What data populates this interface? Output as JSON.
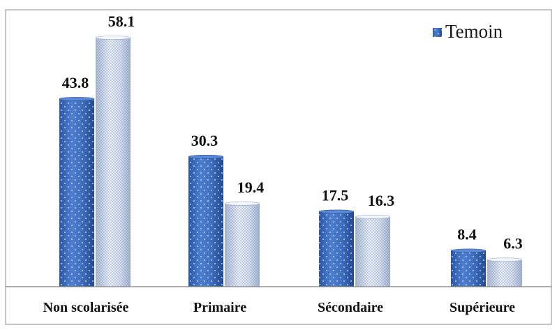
{
  "chart_data": {
    "type": "bar",
    "categories": [
      "Non scolarisée",
      "Primaire",
      "Sécondaire",
      "Supérieure"
    ],
    "series": [
      {
        "name": "Temoin",
        "values": [
          43.8,
          30.3,
          17.5,
          8.4
        ],
        "color": "#3f6fbd",
        "pattern": "dots-on-blue"
      },
      {
        "values": [
          58.1,
          19.4,
          16.3,
          6.3
        ],
        "color": "#c9d6ea",
        "pattern": "dots-on-white"
      }
    ],
    "value_labels": {
      "series_0": [
        "43.8",
        "30.3",
        "17.5",
        "8.4"
      ],
      "series_1": [
        "58.1",
        "19.4",
        "16.3",
        "6.3"
      ]
    },
    "ylim": [
      0,
      58.1
    ],
    "grid": false,
    "legend": {
      "position": "top-right",
      "entries": [
        "Temoin"
      ]
    },
    "style": "cylinder-3d"
  }
}
